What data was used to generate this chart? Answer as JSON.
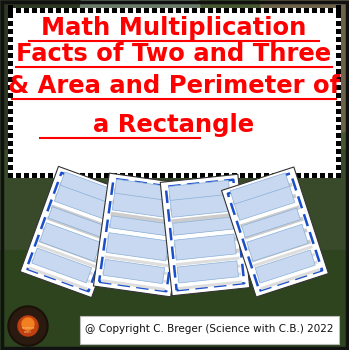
{
  "title_lines": [
    "Math Multiplication",
    "Facts of Two and Three",
    "& Area and Perimeter of",
    "a Rectangle"
  ],
  "title_color": "#FF0000",
  "title_fontsize": 17.5,
  "border_color": "#111111",
  "background_color": "#1a1a1a",
  "text_box_bg": "#ffffff",
  "dotted_border_color": "#000000",
  "copyright_text": "@ Copyright C. Breger (Science with C.B.) 2022",
  "copyright_fontsize": 7.5,
  "copyright_box_color": "#ffffff",
  "sheet_border_color": "#1a4fcc",
  "bg_top_color": "#7a9068",
  "bg_mid_color": "#6a8878",
  "bg_low_color": "#3a5230",
  "bg_right_hill": "#5a6840",
  "bridge_color": "#555555",
  "outer_border": "#111111"
}
